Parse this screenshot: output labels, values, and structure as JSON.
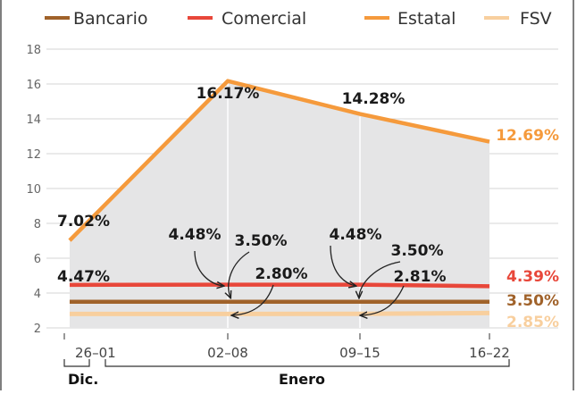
{
  "chart_data": {
    "type": "line",
    "title": "",
    "xlabel": "",
    "ylabel": "",
    "categories": [
      "26–01",
      "02–08",
      "09–15",
      "16–22"
    ],
    "ylim": [
      2,
      18
    ],
    "yticks": [
      2,
      4,
      6,
      8,
      10,
      12,
      14,
      16,
      18
    ],
    "yticklabels": [
      "2",
      "4",
      "6",
      "8",
      "10",
      "12",
      "14",
      "16",
      "18"
    ],
    "grid": true,
    "legend_position": "top",
    "series": [
      {
        "name": "Bancario",
        "color": "#a0622a",
        "values": [
          3.5,
          3.5,
          3.5,
          3.5
        ]
      },
      {
        "name": "Comercial",
        "color": "#e8473a",
        "values": [
          4.47,
          4.48,
          4.48,
          4.39
        ]
      },
      {
        "name": "Estatal",
        "color": "#f59a3c",
        "values": [
          7.02,
          16.17,
          14.28,
          12.69
        ]
      },
      {
        "name": "FSV",
        "color": "#f8cf9e",
        "values": [
          2.8,
          2.8,
          2.81,
          2.85
        ]
      }
    ],
    "point_labels": [
      {
        "text": "7.02%"
      },
      {
        "text": "16.17%"
      },
      {
        "text": "14.28%"
      },
      {
        "text": "4.47%"
      },
      {
        "text": "4.48%"
      },
      {
        "text": "3.50%"
      },
      {
        "text": "2.80%"
      },
      {
        "text": "4.48%"
      },
      {
        "text": "3.50%"
      },
      {
        "text": "2.81%"
      }
    ],
    "end_labels": [
      {
        "text": "12.69%",
        "color": "#f59a3c"
      },
      {
        "text": "4.39%",
        "color": "#e8473a"
      },
      {
        "text": "3.50%",
        "color": "#a0622a"
      },
      {
        "text": "2.85%",
        "color": "#f8cf9e"
      }
    ],
    "periods": [
      {
        "label": "Dic."
      },
      {
        "label": "Enero"
      }
    ]
  }
}
